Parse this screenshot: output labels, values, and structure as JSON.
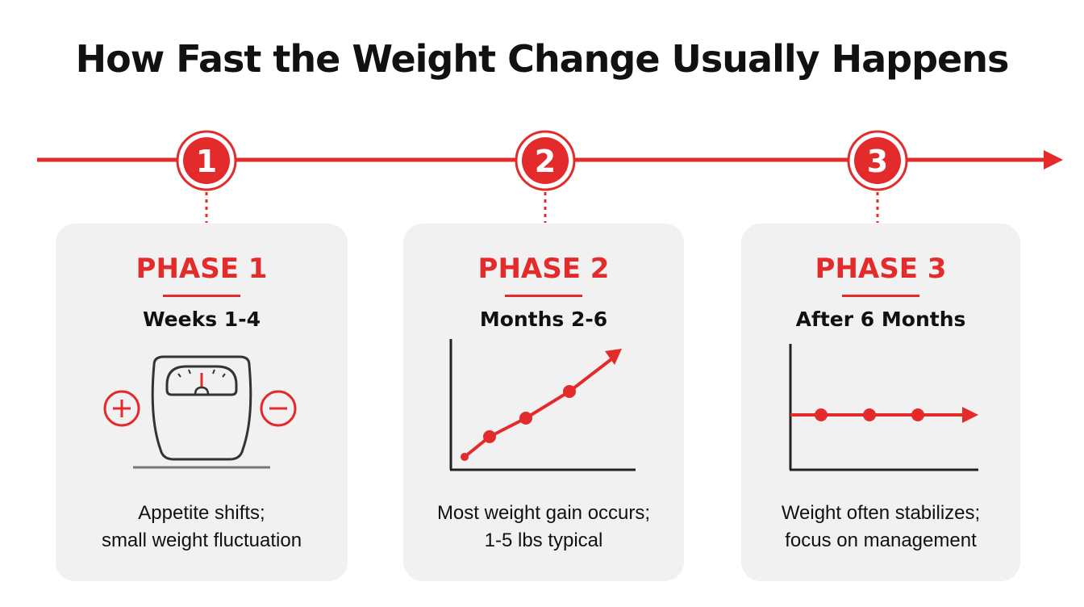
{
  "title": "How Fast the Weight Change Usually Happens",
  "colors": {
    "accent": "#e32b2b",
    "card": "#f1f1f2",
    "text": "#111111"
  },
  "timeline": {
    "markers": [
      "1",
      "2",
      "3"
    ]
  },
  "phases": [
    {
      "label": "PHASE 1",
      "period": "Weeks 1-4",
      "description": [
        "Appetite shifts;",
        "small weight fluctuation"
      ],
      "icons": [
        "plus-icon",
        "scale-icon",
        "minus-icon"
      ]
    },
    {
      "label": "PHASE 2",
      "period": "Months 2-6",
      "description": [
        "Most weight gain occurs;",
        "1-5 lbs typical"
      ],
      "icons": [
        "rising-line-chart-icon"
      ]
    },
    {
      "label": "PHASE 3",
      "period": "After 6 Months",
      "description": [
        "Weight often stabilizes;",
        "focus on management"
      ],
      "icons": [
        "flat-line-chart-icon"
      ]
    }
  ]
}
